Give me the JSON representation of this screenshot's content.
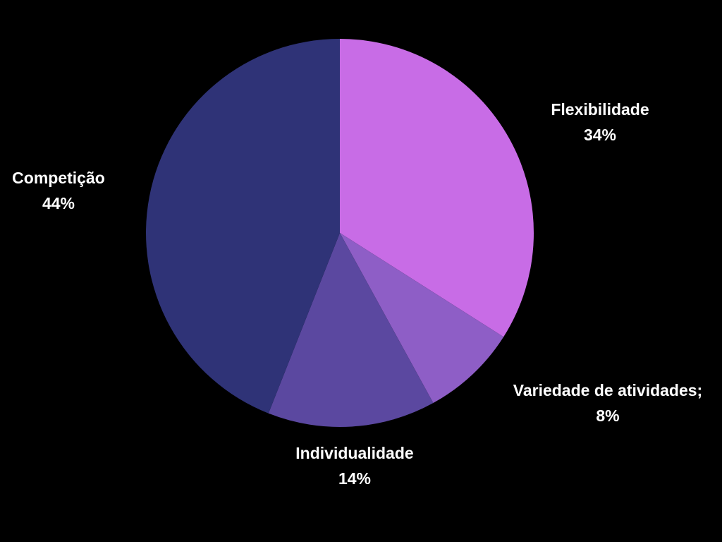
{
  "chart_data": {
    "type": "pie",
    "background": "#000000",
    "label_color": "#ffffff",
    "slices": [
      {
        "label": "Flexibilidade",
        "value_label": "34%",
        "value": 34,
        "color": "#c86ce6"
      },
      {
        "label": "Variedade de atividades;",
        "value_label": "8%",
        "value": 8,
        "color": "#8e5ec6"
      },
      {
        "label": "Individualidade",
        "value_label": "14%",
        "value": 14,
        "color": "#5b48a0"
      },
      {
        "label": "Competição",
        "value_label": "44%",
        "value": 44,
        "color": "#2f3377"
      }
    ]
  }
}
